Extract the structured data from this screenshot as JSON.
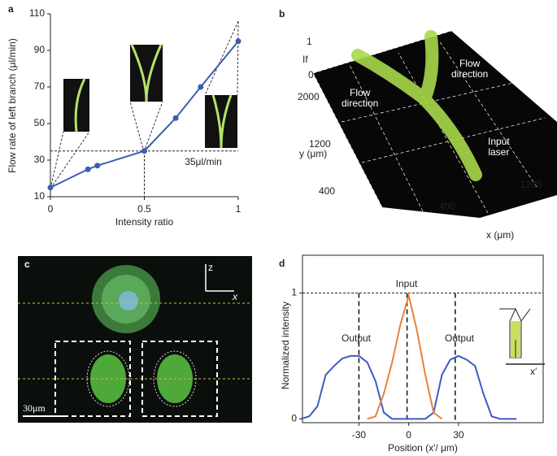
{
  "chart_data": [
    {
      "type": "line",
      "panel_label": "a",
      "y_label": "Flow rate of left branch (μl/min)",
      "x_label": "Intensity ratio",
      "x": [
        0,
        0.2,
        0.25,
        0.5,
        0.667,
        0.8,
        1
      ],
      "series": [
        {
          "color": "#3a5fb0",
          "values": [
            15,
            25,
            27,
            35,
            53,
            70,
            95
          ]
        }
      ],
      "xlim": [
        0,
        1
      ],
      "ylim": [
        10,
        110
      ],
      "xticks": [
        0,
        0.5,
        1
      ],
      "yticks": [
        10,
        30,
        50,
        70,
        90,
        110
      ],
      "markers": true,
      "frame": false,
      "hline": 35,
      "annotations": [
        "35μl/min"
      ]
    },
    {
      "type": "line",
      "panel_label": "d",
      "y_label": "Normalized intensity",
      "x_label": "Position (x′/ μm)",
      "x": [
        -65,
        -60,
        -55,
        -50,
        -45,
        -40,
        -35,
        -30,
        -25,
        -20,
        -15,
        -10,
        -5,
        0,
        5,
        10,
        15,
        20,
        25,
        30,
        35,
        40,
        45,
        50,
        55,
        60,
        65
      ],
      "series": [
        {
          "color": "#3a5fc0",
          "values": [
            0,
            0.02,
            0.1,
            0.35,
            0.42,
            0.48,
            0.5,
            0.5,
            0.45,
            0.3,
            0.05,
            0,
            0,
            0,
            0,
            0,
            0.05,
            0.35,
            0.47,
            0.5,
            0.47,
            0.42,
            0.2,
            0.02,
            0,
            0,
            0
          ]
        },
        {
          "color": "#e8823a",
          "values": [
            null,
            null,
            null,
            null,
            null,
            null,
            null,
            null,
            0,
            0.02,
            0.2,
            0.45,
            0.75,
            0.98,
            0.7,
            0.35,
            0.05,
            0,
            null,
            null,
            null,
            null,
            null,
            null,
            null,
            null,
            null
          ]
        }
      ],
      "xlim": [
        -64,
        81
      ],
      "ylim": [
        -0.03,
        1.3
      ],
      "xticks": [
        -30,
        0,
        30
      ],
      "yticks": [
        0,
        1
      ],
      "markers": false,
      "frame": true,
      "hline": 1,
      "vlines": [
        -30,
        -1,
        28
      ],
      "annotations": [
        "Output",
        "Input",
        "Output"
      ],
      "inset_label": "x′"
    }
  ],
  "image_panels": {
    "b": {
      "panel_label": "b",
      "z_ticks": [
        "1",
        "0"
      ],
      "z_label": "If",
      "y_ticks": [
        "2000",
        "1200",
        "400"
      ],
      "y_label": "y (μm)",
      "x_ticks": [
        "400",
        "1200"
      ],
      "x_label": "x (μm)",
      "notes": [
        [
          "Flow",
          "direction"
        ],
        [
          "Flow",
          "direction"
        ],
        [
          "Input",
          "laser"
        ]
      ]
    },
    "c": {
      "panel_label": "c",
      "axis_z": "z",
      "axis_x": "x",
      "scale_bar": "30μm"
    }
  }
}
